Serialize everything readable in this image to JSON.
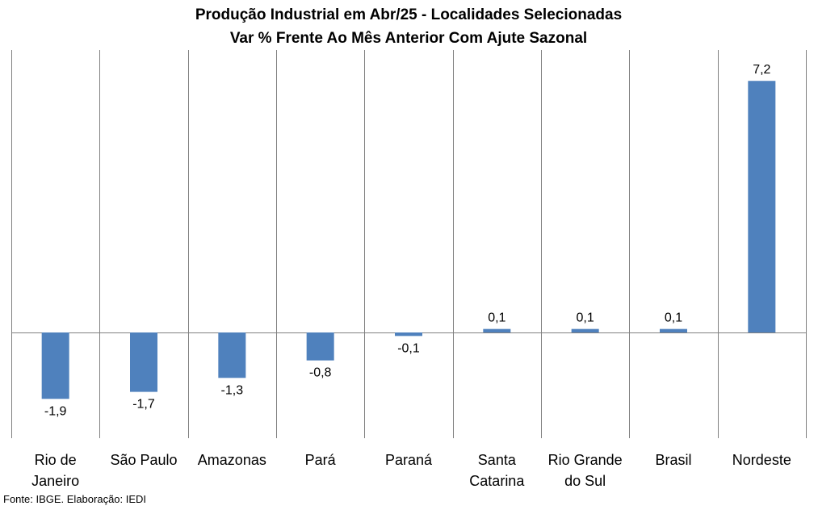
{
  "chart_data": {
    "type": "bar",
    "title": [
      "Produção Industrial em Abr/25 - Localidades Selecionadas",
      "Var % Frente Ao Mês Anterior Com Ajute Sazonal"
    ],
    "categories": [
      [
        "Rio de",
        "Janeiro"
      ],
      [
        "São Paulo"
      ],
      [
        "Amazonas"
      ],
      [
        "Pará"
      ],
      [
        "Paraná"
      ],
      [
        "Santa",
        "Catarina"
      ],
      [
        "Rio Grande",
        "do Sul"
      ],
      [
        "Brasil"
      ],
      [
        "Nordeste"
      ]
    ],
    "values": [
      -1.9,
      -1.7,
      -1.3,
      -0.8,
      -0.1,
      0.1,
      0.1,
      0.1,
      7.2
    ],
    "data_labels": [
      "-1,9",
      "-1,7",
      "-1,3",
      "-0,8",
      "-0,1",
      "0,1",
      "0,1",
      "0,1",
      "7,2"
    ],
    "ylim": [
      -3.0,
      8.0
    ],
    "bar_color": "#4F81BD",
    "grid": "vertical category separators",
    "legend": "none"
  },
  "source": "Fonte: IBGE. Elaboração: IEDI"
}
